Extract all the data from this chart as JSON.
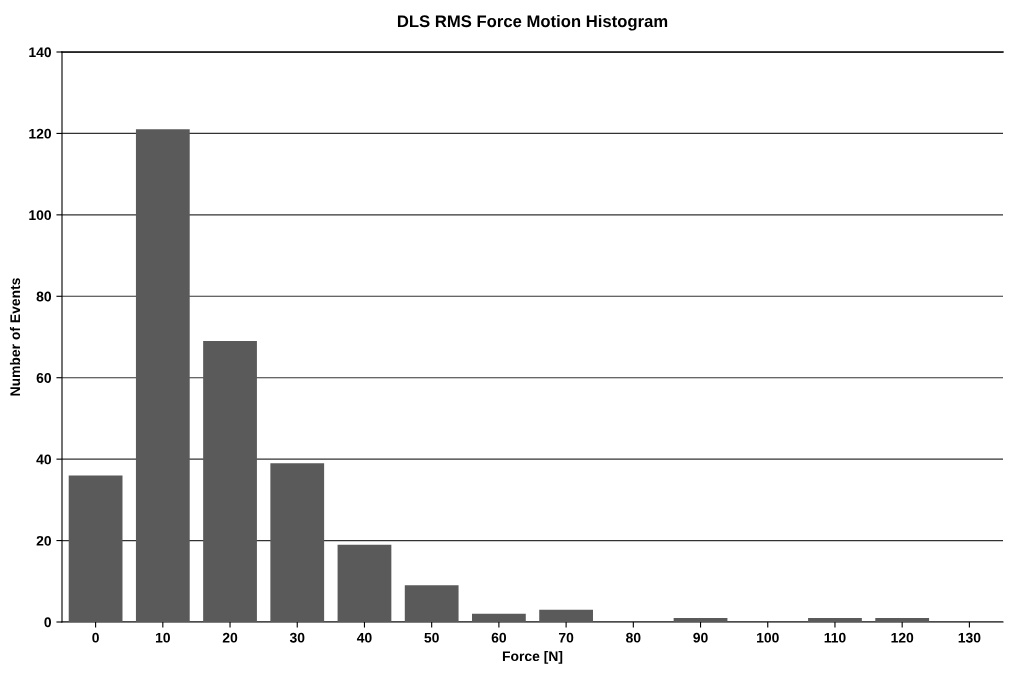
{
  "chart_data": {
    "type": "bar",
    "title": "DLS RMS Force Motion Histogram",
    "xlabel": "Force [N]",
    "ylabel": "Number of Events",
    "categories": [
      "0",
      "10",
      "20",
      "30",
      "40",
      "50",
      "60",
      "70",
      "80",
      "90",
      "100",
      "110",
      "120",
      "130"
    ],
    "values": [
      36,
      121,
      69,
      39,
      19,
      9,
      2,
      3,
      0,
      1,
      0,
      1,
      1,
      0
    ],
    "color": "#5a5a5a",
    "ylim": [
      0,
      140
    ],
    "yticks": [
      0,
      20,
      40,
      60,
      80,
      100,
      120,
      140
    ],
    "grid": "y"
  }
}
